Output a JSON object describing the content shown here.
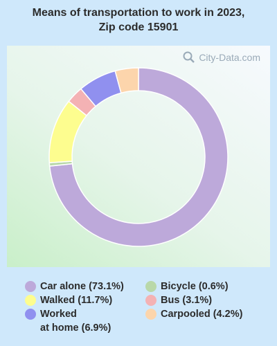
{
  "title": "Means of transportation to work in 2023, Zip code 15901",
  "watermark": "City-Data.com",
  "chart_data": {
    "type": "pie",
    "style": "donut",
    "title": "Means of transportation to work in 2023, Zip code 15901",
    "slices": [
      {
        "label": "Car alone",
        "value": 73.1,
        "legend": "Car alone (73.1%)",
        "color": "#bda9da"
      },
      {
        "label": "Bicycle",
        "value": 0.6,
        "legend": "Bicycle (0.6%)",
        "color": "#b9d8a9"
      },
      {
        "label": "Walked",
        "value": 11.7,
        "legend": "Walked (11.7%)",
        "color": "#fdfd8f"
      },
      {
        "label": "Bus",
        "value": 3.1,
        "legend": "Bus (3.1%)",
        "color": "#f4b2b4"
      },
      {
        "label": "Worked at home",
        "value": 6.9,
        "legend": "Worked\nat home (6.9%)",
        "color": "#9090ef"
      },
      {
        "label": "Carpooled",
        "value": 4.2,
        "legend": "Carpooled (4.2%)",
        "color": "#fcd5ac"
      }
    ],
    "legend_placement": "bottom"
  }
}
